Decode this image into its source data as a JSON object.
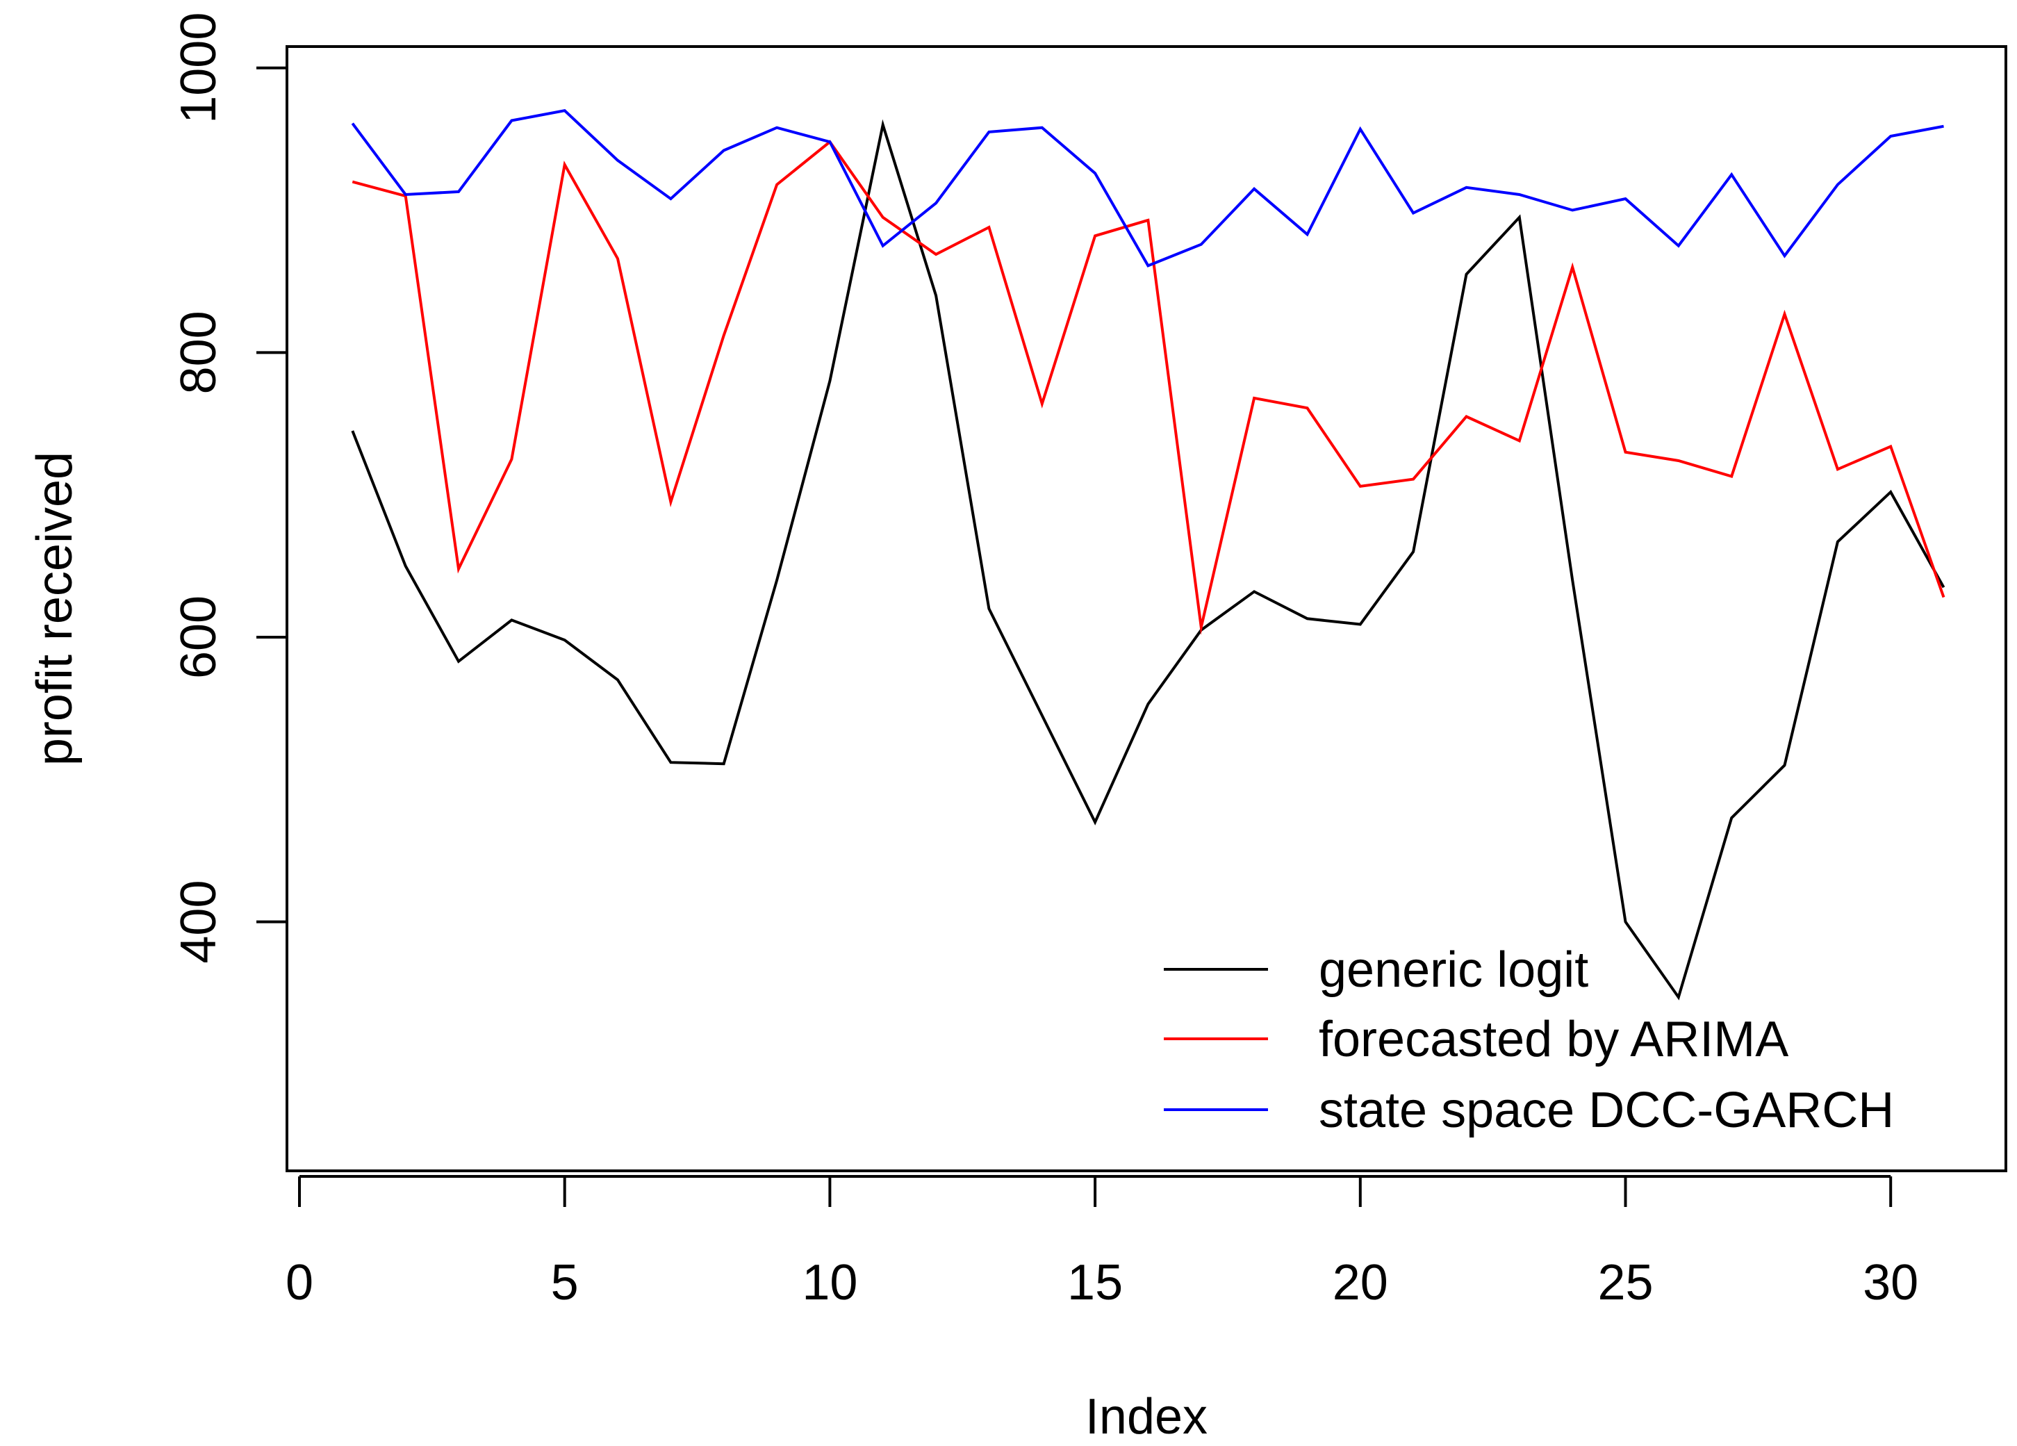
{
  "chart_data": {
    "type": "line",
    "title": "",
    "xlabel": "Index",
    "ylabel": "profit received",
    "xlim": [
      0,
      32
    ],
    "ylim": [
      225,
      1015
    ],
    "xticks": [
      0,
      5,
      10,
      15,
      20,
      25,
      30
    ],
    "yticks": [
      400,
      600,
      800,
      1000
    ],
    "grid": false,
    "legend_position": "bottom-right",
    "x": [
      1,
      2,
      3,
      4,
      5,
      6,
      7,
      8,
      9,
      10,
      11,
      12,
      13,
      14,
      15,
      16,
      17,
      18,
      19,
      20,
      21,
      22,
      23,
      24,
      25,
      26,
      27,
      28,
      29,
      30,
      31
    ],
    "series": [
      {
        "name": "generic logit",
        "color": "#000000",
        "values": [
          745,
          650,
          583,
          612,
          598,
          570,
          512,
          511,
          640,
          780,
          960,
          840,
          620,
          545,
          470,
          553,
          605,
          632,
          613,
          609,
          660,
          855,
          895,
          640,
          400,
          347,
          473,
          510,
          667,
          702,
          635
        ]
      },
      {
        "name": "forecasted by ARIMA",
        "color": "#ff0000",
        "values": [
          920,
          910,
          648,
          725,
          932,
          866,
          695,
          812,
          918,
          948,
          895,
          869,
          888,
          764,
          882,
          893,
          607,
          768,
          761,
          706,
          711,
          755,
          738,
          860,
          730,
          724,
          713,
          827,
          718,
          734,
          628
        ]
      },
      {
        "name": "state space DCC-GARCH",
        "color": "#0000ff",
        "values": [
          961,
          911,
          913,
          963,
          970,
          935,
          908,
          942,
          958,
          948,
          875,
          905,
          955,
          958,
          926,
          861,
          876,
          915,
          883,
          957,
          898,
          916,
          911,
          900,
          908,
          875,
          925,
          868,
          918,
          952,
          959
        ]
      }
    ]
  }
}
